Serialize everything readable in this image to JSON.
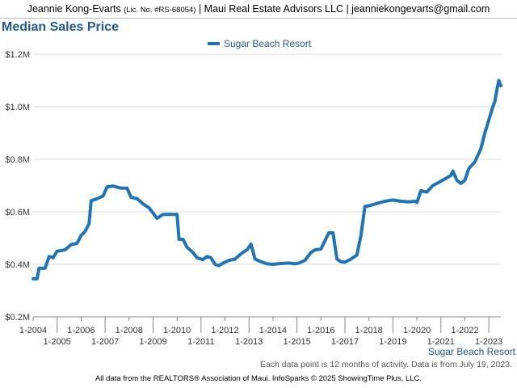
{
  "header": {
    "agent_name": "Jeannie Kong-Evarts",
    "license": "(Lic. No. #RS-68054)",
    "agency_info": "| Maui Real Estate Advisors LLC | jeanniekongevarts@gmail.com"
  },
  "footnote": "Each data point is 12 months of activity. Data is from July 19, 2023.",
  "credits": "All data from the REALTORS® Association of Maui. InfoSparks © 2025 ShowingTime Plus, LLC.",
  "chart_data": {
    "type": "line",
    "title": "Median Sales Price",
    "xlabel": "Sugar Beach Resort",
    "ylabel": "",
    "ylim": [
      200000,
      1200000
    ],
    "xlim": [
      "2004-01",
      "2023-07"
    ],
    "yticks": [
      "$0.2M",
      "$0.4M",
      "$0.6M",
      "$0.8M",
      "$1.0M",
      "$1.2M"
    ],
    "xticks_upper": [
      "1-2004",
      "1-2006",
      "1-2008",
      "1-2010",
      "1-2012",
      "1-2014",
      "1-2016",
      "1-2018",
      "1-2020",
      "1-2022"
    ],
    "xticks_lower": [
      "1-2005",
      "1-2007",
      "1-2009",
      "1-2011",
      "1-2013",
      "1-2015",
      "1-2017",
      "1-2019",
      "1-2021",
      "1-2023"
    ],
    "grid": true,
    "legend_position": "top-center",
    "series": [
      {
        "name": "Sugar Beach Resort",
        "color": "#1f73b7",
        "points": [
          [
            "2004-01",
            345000
          ],
          [
            "2004-03",
            345000
          ],
          [
            "2004-04",
            385000
          ],
          [
            "2004-07",
            385000
          ],
          [
            "2004-09",
            430000
          ],
          [
            "2004-11",
            425000
          ],
          [
            "2005-01",
            450000
          ],
          [
            "2005-05",
            455000
          ],
          [
            "2005-08",
            475000
          ],
          [
            "2005-11",
            480000
          ],
          [
            "2006-01",
            510000
          ],
          [
            "2006-03",
            525000
          ],
          [
            "2006-05",
            555000
          ],
          [
            "2006-06",
            642000
          ],
          [
            "2006-09",
            650000
          ],
          [
            "2006-12",
            660000
          ],
          [
            "2007-02",
            695000
          ],
          [
            "2007-05",
            698000
          ],
          [
            "2007-09",
            690000
          ],
          [
            "2007-12",
            690000
          ],
          [
            "2008-02",
            655000
          ],
          [
            "2008-05",
            650000
          ],
          [
            "2008-08",
            630000
          ],
          [
            "2008-11",
            615000
          ],
          [
            "2009-01",
            595000
          ],
          [
            "2009-03",
            575000
          ],
          [
            "2009-06",
            590000
          ],
          [
            "2009-10",
            590000
          ],
          [
            "2010-01",
            590000
          ],
          [
            "2010-02",
            495000
          ],
          [
            "2010-04",
            495000
          ],
          [
            "2010-06",
            465000
          ],
          [
            "2010-09",
            445000
          ],
          [
            "2010-11",
            425000
          ],
          [
            "2011-02",
            418000
          ],
          [
            "2011-04",
            430000
          ],
          [
            "2011-06",
            425000
          ],
          [
            "2011-08",
            400000
          ],
          [
            "2011-10",
            395000
          ],
          [
            "2011-12",
            405000
          ],
          [
            "2012-03",
            415000
          ],
          [
            "2012-06",
            420000
          ],
          [
            "2012-09",
            440000
          ],
          [
            "2012-12",
            455000
          ],
          [
            "2013-02",
            477000
          ],
          [
            "2013-04",
            420000
          ],
          [
            "2013-07",
            410000
          ],
          [
            "2013-10",
            402000
          ],
          [
            "2014-01",
            400000
          ],
          [
            "2014-05",
            403000
          ],
          [
            "2014-09",
            405000
          ],
          [
            "2014-12",
            402000
          ],
          [
            "2015-02",
            405000
          ],
          [
            "2015-05",
            415000
          ],
          [
            "2015-08",
            445000
          ],
          [
            "2015-10",
            455000
          ],
          [
            "2016-01",
            458000
          ],
          [
            "2016-03",
            490000
          ],
          [
            "2016-05",
            520000
          ],
          [
            "2016-07",
            520000
          ],
          [
            "2016-09",
            420000
          ],
          [
            "2016-11",
            410000
          ],
          [
            "2017-01",
            408000
          ],
          [
            "2017-04",
            420000
          ],
          [
            "2017-07",
            435000
          ],
          [
            "2017-09",
            510000
          ],
          [
            "2017-11",
            620000
          ],
          [
            "2018-02",
            625000
          ],
          [
            "2018-05",
            632000
          ],
          [
            "2018-09",
            640000
          ],
          [
            "2019-01",
            645000
          ],
          [
            "2019-05",
            640000
          ],
          [
            "2019-09",
            638000
          ],
          [
            "2019-12",
            640000
          ],
          [
            "2020-01",
            635000
          ],
          [
            "2020-03",
            680000
          ],
          [
            "2020-06",
            675000
          ],
          [
            "2020-09",
            700000
          ],
          [
            "2020-12",
            712000
          ],
          [
            "2021-03",
            725000
          ],
          [
            "2021-06",
            738000
          ],
          [
            "2021-07",
            755000
          ],
          [
            "2021-09",
            720000
          ],
          [
            "2021-11",
            708000
          ],
          [
            "2022-01",
            720000
          ],
          [
            "2022-03",
            765000
          ],
          [
            "2022-06",
            790000
          ],
          [
            "2022-09",
            840000
          ],
          [
            "2022-11",
            900000
          ],
          [
            "2023-01",
            950000
          ],
          [
            "2023-03",
            1000000
          ],
          [
            "2023-04",
            1020000
          ],
          [
            "2023-05",
            1065000
          ],
          [
            "2023-06",
            1100000
          ],
          [
            "2023-07",
            1080000
          ]
        ]
      }
    ]
  }
}
